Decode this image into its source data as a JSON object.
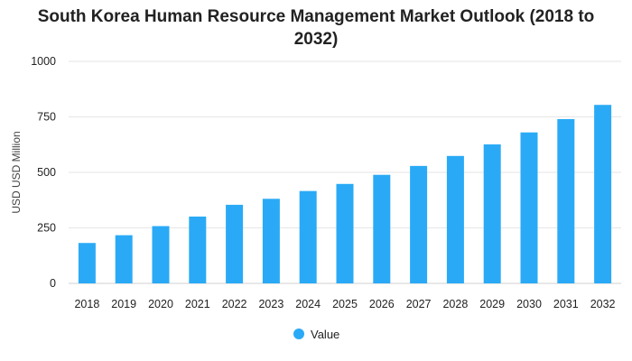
{
  "chart_data": {
    "type": "bar",
    "title": "South Korea Human Resource Management Market Outlook (2018 to 2032)",
    "xlabel": "",
    "ylabel": "USD USD Million",
    "ylim": [
      0,
      1000
    ],
    "yticks": [
      0,
      250,
      500,
      750,
      1000
    ],
    "grid": true,
    "legend_position": "bottom",
    "bar_color": "#2aaaf6",
    "categories": [
      "2018",
      "2019",
      "2020",
      "2021",
      "2022",
      "2023",
      "2024",
      "2025",
      "2026",
      "2027",
      "2028",
      "2029",
      "2030",
      "2031",
      "2032"
    ],
    "series": [
      {
        "name": "Value",
        "values": [
          182,
          217,
          258,
          301,
          354,
          381,
          416,
          448,
          489,
          529,
          574,
          626,
          680,
          740,
          804
        ]
      }
    ]
  }
}
